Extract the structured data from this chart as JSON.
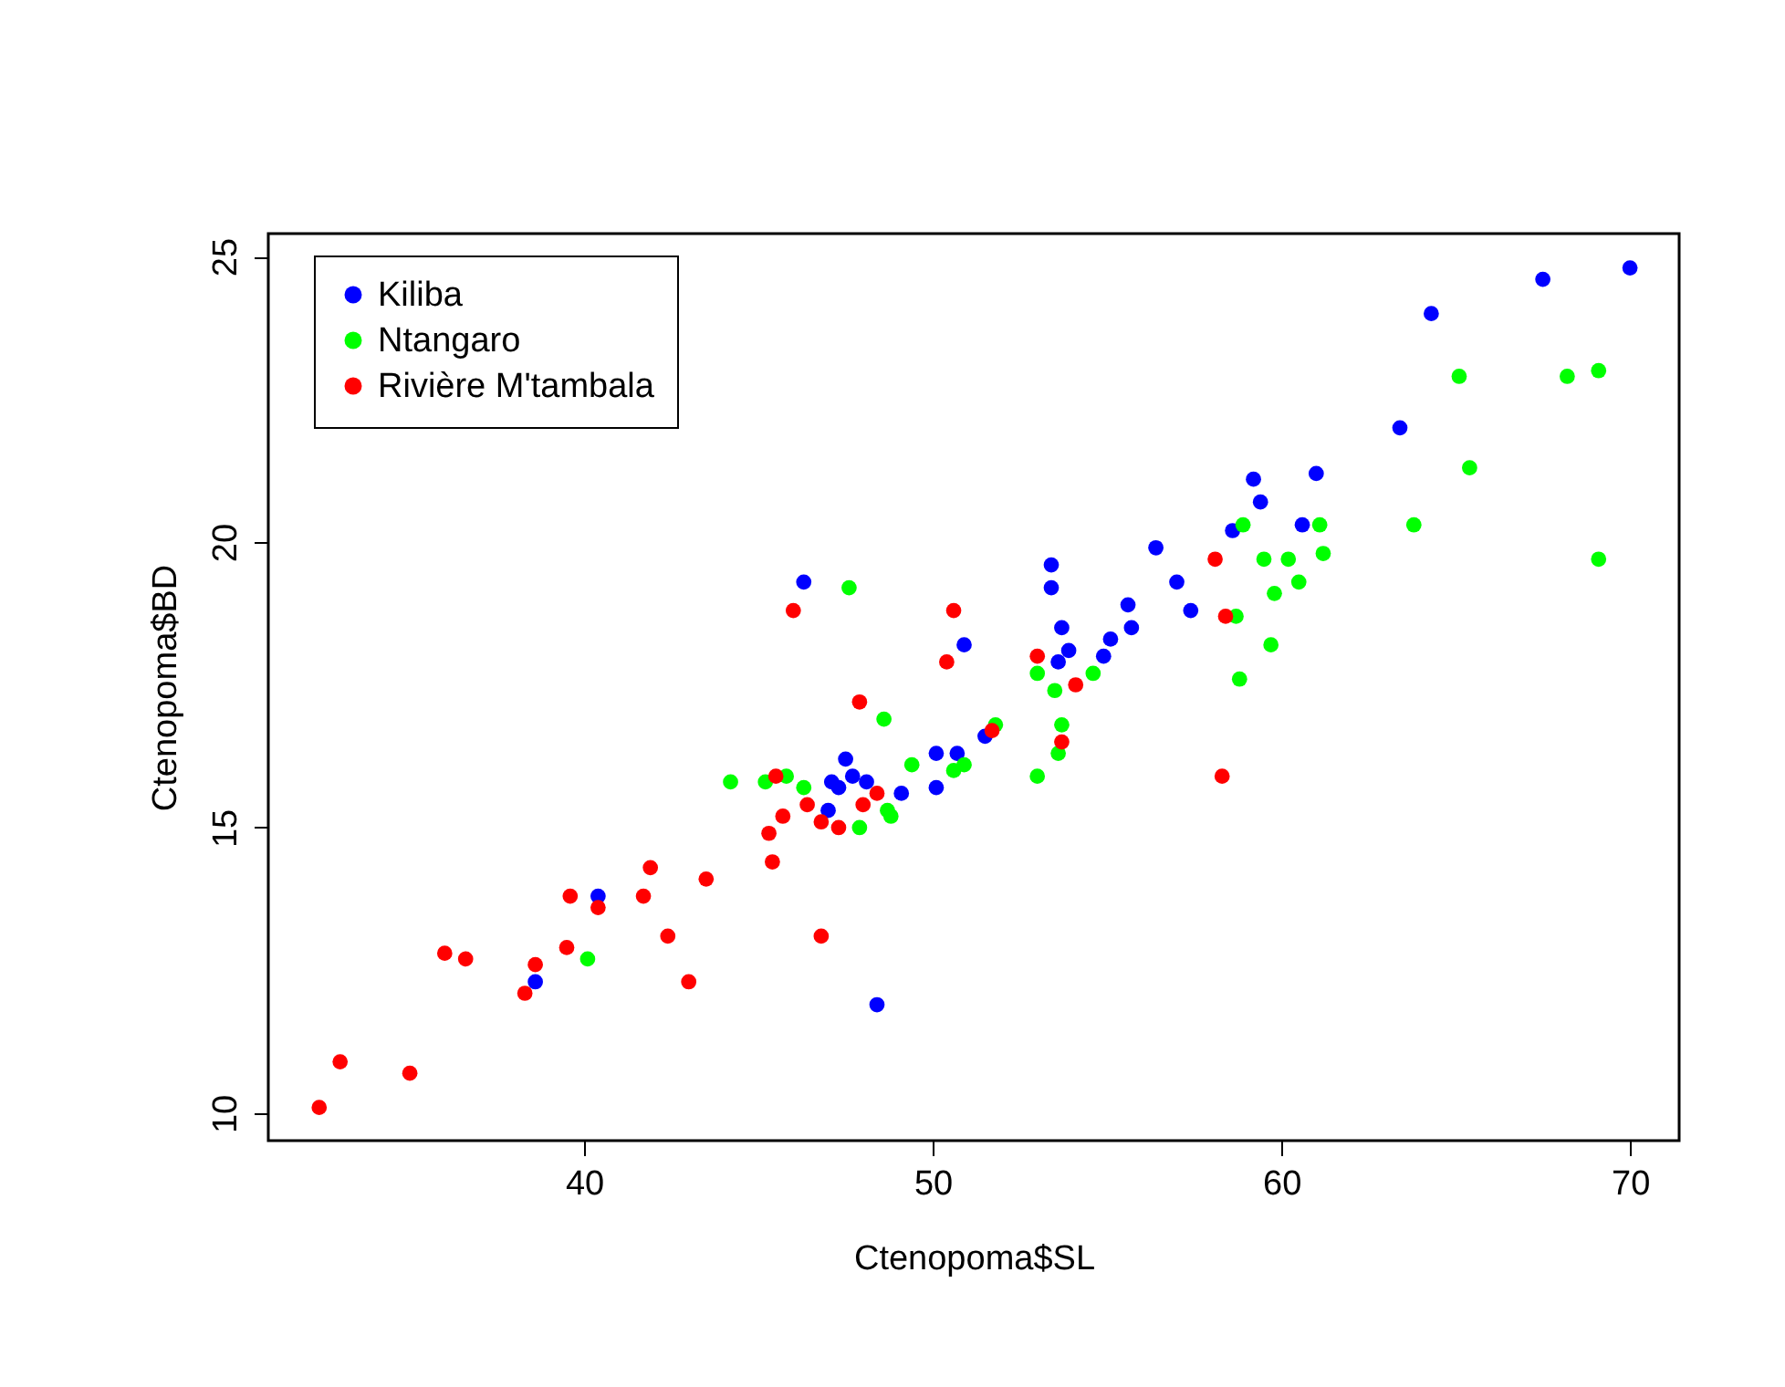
{
  "chart_data": {
    "type": "scatter",
    "xlabel": "Ctenopoma$SL",
    "ylabel": "Ctenopoma$BD",
    "xlim": [
      30.94,
      71.41
    ],
    "ylim": [
      9.52,
      25.4
    ],
    "xticks": [
      40,
      50,
      60,
      70
    ],
    "yticks": [
      10,
      15,
      20,
      25
    ],
    "grid": false,
    "legend": "top left",
    "marker": "circle",
    "series": [
      {
        "name": "Kiliba",
        "color": "#0000ff",
        "x": [
          38.6,
          40.4,
          46.3,
          47.0,
          47.1,
          47.3,
          47.5,
          47.7,
          48.1,
          48.4,
          49.1,
          50.1,
          50.1,
          50.7,
          50.9,
          51.5,
          53.4,
          53.4,
          53.7,
          53.6,
          53.9,
          54.9,
          55.1,
          55.6,
          55.7,
          56.4,
          57.0,
          57.4,
          58.6,
          59.2,
          59.4,
          60.6,
          61.0,
          63.4,
          64.3,
          67.5,
          70.0
        ],
        "values": [
          12.3,
          13.8,
          19.3,
          15.3,
          15.8,
          15.7,
          16.2,
          15.9,
          15.8,
          11.9,
          15.6,
          16.3,
          15.7,
          16.3,
          18.2,
          16.6,
          19.6,
          19.2,
          18.5,
          17.9,
          18.1,
          18.0,
          18.3,
          18.9,
          18.5,
          19.9,
          19.3,
          18.8,
          20.2,
          21.1,
          20.7,
          20.3,
          21.2,
          22.0,
          24.0,
          24.6,
          24.8
        ]
      },
      {
        "name": "Ntangaro",
        "color": "#00ff00",
        "x": [
          40.1,
          44.2,
          45.2,
          45.8,
          46.3,
          47.6,
          47.9,
          48.6,
          48.7,
          48.8,
          49.4,
          50.6,
          50.9,
          51.8,
          53.0,
          53.0,
          53.5,
          53.6,
          53.7,
          54.6,
          58.7,
          58.9,
          58.8,
          59.5,
          59.7,
          59.8,
          60.2,
          60.5,
          61.1,
          61.2,
          63.8,
          65.1,
          65.4,
          68.2,
          69.1,
          69.1
        ],
        "values": [
          12.7,
          15.8,
          15.8,
          15.9,
          15.7,
          19.2,
          15.0,
          16.9,
          15.3,
          15.2,
          16.1,
          16.0,
          16.1,
          16.8,
          15.9,
          17.7,
          17.4,
          16.3,
          16.8,
          17.7,
          18.7,
          20.3,
          17.6,
          19.7,
          18.2,
          19.1,
          19.7,
          19.3,
          20.3,
          19.8,
          20.3,
          22.9,
          21.3,
          22.9,
          23.0,
          19.7
        ]
      },
      {
        "name": "Rivière M'tambala",
        "color": "#ff0000",
        "x": [
          32.4,
          33.0,
          35.0,
          36.0,
          36.6,
          38.3,
          38.6,
          39.5,
          39.6,
          40.4,
          41.7,
          41.9,
          42.4,
          43.0,
          43.5,
          45.3,
          45.4,
          45.5,
          45.7,
          46.0,
          46.4,
          46.8,
          46.8,
          47.3,
          47.9,
          48.0,
          48.4,
          50.4,
          50.6,
          51.7,
          53.0,
          53.7,
          54.1,
          58.1,
          58.3,
          58.4
        ],
        "values": [
          10.1,
          10.9,
          10.7,
          12.8,
          12.7,
          12.1,
          12.6,
          12.9,
          13.8,
          13.6,
          13.8,
          14.3,
          13.1,
          12.3,
          14.1,
          14.9,
          14.4,
          15.9,
          15.2,
          18.8,
          15.4,
          15.1,
          13.1,
          15.0,
          17.2,
          15.4,
          15.6,
          17.9,
          18.8,
          16.7,
          18.0,
          16.5,
          17.5,
          19.7,
          15.9,
          18.7
        ]
      }
    ]
  }
}
